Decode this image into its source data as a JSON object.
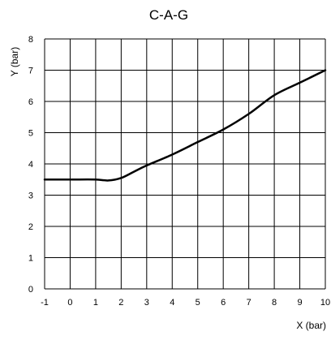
{
  "chart_data": {
    "type": "line",
    "title": "C-A-G",
    "xlabel": "X (bar)",
    "ylabel": "Y (bar)",
    "xlim": [
      -1,
      10
    ],
    "ylim": [
      0,
      8
    ],
    "x_ticks": [
      -1,
      0,
      1,
      2,
      3,
      4,
      5,
      6,
      7,
      8,
      9,
      10
    ],
    "y_ticks": [
      0,
      1,
      2,
      3,
      4,
      5,
      6,
      7,
      8
    ],
    "x_tick_labels": [
      "-1",
      "0",
      "1",
      "2",
      "3",
      "4",
      "5",
      "6",
      "7",
      "8",
      "9",
      "10"
    ],
    "y_tick_labels": [
      "0",
      "1",
      "2",
      "3",
      "4",
      "5",
      "6",
      "7",
      "8"
    ],
    "grid": true,
    "legend": "none",
    "series": [
      {
        "color": "#000000",
        "x": [
          -1,
          0,
          1,
          1.5,
          2,
          2.5,
          3,
          4,
          5,
          6,
          7,
          8,
          9,
          10
        ],
        "y": [
          3.5,
          3.5,
          3.5,
          3.47,
          3.55,
          3.75,
          3.95,
          4.3,
          4.7,
          5.1,
          5.6,
          6.2,
          6.6,
          7.0
        ]
      }
    ]
  }
}
